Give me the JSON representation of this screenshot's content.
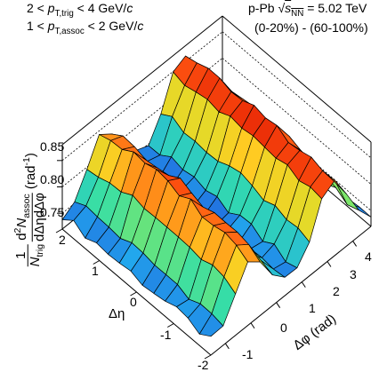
{
  "chart_data": {
    "type": "surface3d",
    "text": {
      "cond_trig_pre": "2 < ",
      "cond_trig_var": "p",
      "cond_trig_sub": "T,trig",
      "cond_trig_post": " < 4 GeV/",
      "cond_trig_c": "c",
      "cond_assoc_pre": "1 < ",
      "cond_assoc_var": "p",
      "cond_assoc_sub": "T,assoc",
      "cond_assoc_post": " < 2 GeV/",
      "cond_assoc_c": "c",
      "system_pre": "p-Pb ",
      "system_sqrt": "√",
      "system_s": "s",
      "system_sub": "NN",
      "system_post": " = 5.02 TeV",
      "centrality": "(0-20%) - (60-100%)",
      "ylabel_frac_num": "1",
      "ylabel_frac_den_N": "N",
      "ylabel_frac_den_sub": "trig",
      "ylabel_d2": "d",
      "ylabel_d2_sup": "2",
      "ylabel_N": "N",
      "ylabel_N_sub": "assoc",
      "ylabel_denom": "dΔηdΔφ",
      "ylabel_unit": "(rad",
      "ylabel_unit_sup": "-1",
      "ylabel_unit_close": ")",
      "xlabel": "Δη",
      "phi_label": "Δφ (rad)"
    },
    "z_ticks": [
      "0.75",
      "0.80",
      "0.85"
    ],
    "eta_ticks": [
      "2",
      "1",
      "0",
      "-1",
      "-2"
    ],
    "phi_ticks": [
      "-1",
      "0",
      "1",
      "2",
      "3",
      "4"
    ],
    "eta_range": [
      -2,
      2
    ],
    "phi_range": [
      -1.5708,
      4.7124
    ],
    "z_range": [
      0.72,
      0.88
    ],
    "grid_eta_points": 14,
    "grid_phi_points": 14,
    "surface_description": "near-side ridge at Δφ≈0 and away-side ridge at Δφ≈π, both extended in Δη",
    "near_side_peak": 0.865,
    "away_side_peak": 0.875,
    "baseline": 0.735,
    "colormap": [
      "#2222cc",
      "#22aaee",
      "#33ddaa",
      "#bbee33",
      "#ffcc22",
      "#ff5511",
      "#dd1100"
    ]
  }
}
